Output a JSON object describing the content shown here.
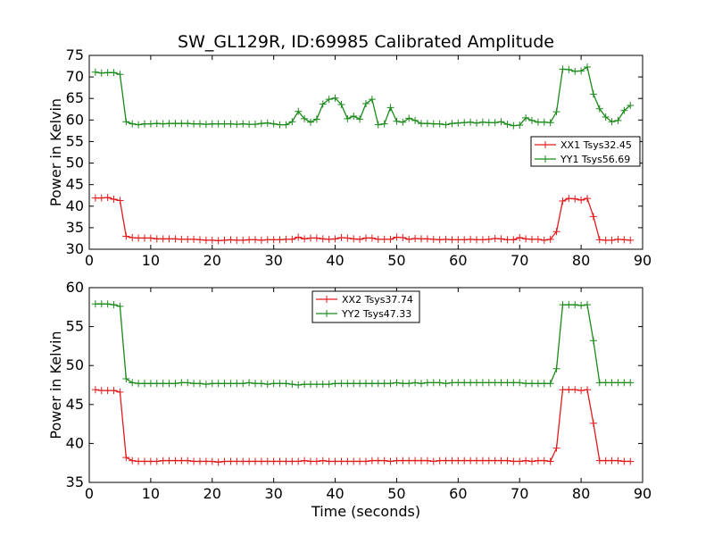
{
  "title": "SW_GL129R, ID:69985 Calibrated Amplitude",
  "xlabel": "Time (seconds)",
  "colors": {
    "red": "#e31a1c",
    "green": "#1a8a1a"
  },
  "chart_data": [
    {
      "type": "line",
      "title": "SW_GL129R, ID:69985 Calibrated Amplitude",
      "xlabel": "",
      "ylabel": "Power in Kelvin",
      "xlim": [
        0,
        90
      ],
      "ylim": [
        30,
        75
      ],
      "xticks": [
        0,
        10,
        20,
        30,
        40,
        50,
        60,
        70,
        80,
        90
      ],
      "yticks": [
        30,
        35,
        40,
        45,
        50,
        55,
        60,
        65,
        70,
        75
      ],
      "legend_position": "right",
      "series": [
        {
          "name": "XX1 Tsys32.45",
          "color": "#e31a1c",
          "x": [
            1,
            2,
            3,
            4,
            5,
            6,
            7,
            8,
            9,
            10,
            11,
            12,
            13,
            14,
            15,
            16,
            17,
            18,
            19,
            20,
            21,
            22,
            23,
            24,
            25,
            26,
            27,
            28,
            29,
            30,
            31,
            32,
            33,
            34,
            35,
            36,
            37,
            38,
            39,
            40,
            41,
            42,
            43,
            44,
            45,
            46,
            47,
            48,
            49,
            50,
            51,
            52,
            53,
            54,
            55,
            56,
            57,
            58,
            59,
            60,
            61,
            62,
            63,
            64,
            65,
            66,
            67,
            68,
            69,
            70,
            71,
            72,
            73,
            74,
            75,
            76,
            77,
            78,
            79,
            80,
            81,
            82,
            83,
            84,
            85,
            86,
            87,
            88
          ],
          "y": [
            41.9,
            41.9,
            42.0,
            41.6,
            41.3,
            33.0,
            32.7,
            32.6,
            32.6,
            32.6,
            32.4,
            32.4,
            32.4,
            32.4,
            32.3,
            32.3,
            32.3,
            32.2,
            32.1,
            32.1,
            32.0,
            32.1,
            32.2,
            32.1,
            32.1,
            32.2,
            32.2,
            32.1,
            32.2,
            32.2,
            32.2,
            32.3,
            32.3,
            32.8,
            32.4,
            32.6,
            32.6,
            32.4,
            32.3,
            32.4,
            32.7,
            32.6,
            32.4,
            32.3,
            32.6,
            32.6,
            32.3,
            32.3,
            32.3,
            32.8,
            32.7,
            32.3,
            32.5,
            32.4,
            32.4,
            32.3,
            32.2,
            32.3,
            32.2,
            32.2,
            32.2,
            32.3,
            32.2,
            32.2,
            32.3,
            32.5,
            32.4,
            32.2,
            32.2,
            32.7,
            32.4,
            32.3,
            32.3,
            32.1,
            32.3,
            34.1,
            41.2,
            41.8,
            41.7,
            41.4,
            41.8,
            37.6,
            32.2,
            32.1,
            32.1,
            32.3,
            32.2,
            32.1
          ]
        },
        {
          "name": "YY1 Tsys56.69",
          "color": "#1a8a1a",
          "x": [
            1,
            2,
            3,
            4,
            5,
            6,
            7,
            8,
            9,
            10,
            11,
            12,
            13,
            14,
            15,
            16,
            17,
            18,
            19,
            20,
            21,
            22,
            23,
            24,
            25,
            26,
            27,
            28,
            29,
            30,
            31,
            32,
            33,
            34,
            35,
            36,
            37,
            38,
            39,
            40,
            41,
            42,
            43,
            44,
            45,
            46,
            47,
            48,
            49,
            50,
            51,
            52,
            53,
            54,
            55,
            56,
            57,
            58,
            59,
            60,
            61,
            62,
            63,
            64,
            65,
            66,
            67,
            68,
            69,
            70,
            71,
            72,
            73,
            74,
            75,
            76,
            77,
            78,
            79,
            80,
            81,
            82,
            83,
            84,
            85,
            86,
            87,
            88
          ],
          "y": [
            71.1,
            70.9,
            71.0,
            71.0,
            70.6,
            59.6,
            59.1,
            58.9,
            59.1,
            59.1,
            59.2,
            59.1,
            59.2,
            59.2,
            59.2,
            59.2,
            59.1,
            59.1,
            59.0,
            59.1,
            59.1,
            59.1,
            59.1,
            59.0,
            59.1,
            59.0,
            59.0,
            59.2,
            59.3,
            59.1,
            58.9,
            58.9,
            59.6,
            62.0,
            60.3,
            59.5,
            60.2,
            63.7,
            64.8,
            65.1,
            63.6,
            60.3,
            60.9,
            60.2,
            63.8,
            64.8,
            58.9,
            59.1,
            62.9,
            59.7,
            59.5,
            60.4,
            59.9,
            59.2,
            59.2,
            59.1,
            59.1,
            58.9,
            59.2,
            59.3,
            59.4,
            59.5,
            59.3,
            59.5,
            59.4,
            59.4,
            59.6,
            59.0,
            58.7,
            58.8,
            60.5,
            59.9,
            59.5,
            59.5,
            59.4,
            61.9,
            71.8,
            71.7,
            71.3,
            71.4,
            72.3,
            66.0,
            62.6,
            60.7,
            59.6,
            59.9,
            62.2,
            63.4
          ]
        }
      ]
    },
    {
      "type": "line",
      "title": "",
      "xlabel": "Time (seconds)",
      "ylabel": "Power in Kelvin",
      "xlim": [
        0,
        90
      ],
      "ylim": [
        35,
        60
      ],
      "xticks": [
        0,
        10,
        20,
        30,
        40,
        50,
        60,
        70,
        80,
        90
      ],
      "yticks": [
        35,
        40,
        45,
        50,
        55,
        60
      ],
      "legend_position": "top-center",
      "series": [
        {
          "name": "XX2 Tsys37.74",
          "color": "#e31a1c",
          "x": [
            1,
            2,
            3,
            4,
            5,
            6,
            7,
            8,
            9,
            10,
            11,
            12,
            13,
            14,
            15,
            16,
            17,
            18,
            19,
            20,
            21,
            22,
            23,
            24,
            25,
            26,
            27,
            28,
            29,
            30,
            31,
            32,
            33,
            34,
            35,
            36,
            37,
            38,
            39,
            40,
            41,
            42,
            43,
            44,
            45,
            46,
            47,
            48,
            49,
            50,
            51,
            52,
            53,
            54,
            55,
            56,
            57,
            58,
            59,
            60,
            61,
            62,
            63,
            64,
            65,
            66,
            67,
            68,
            69,
            70,
            71,
            72,
            73,
            74,
            75,
            76,
            77,
            78,
            79,
            80,
            81,
            82,
            83,
            84,
            85,
            86,
            87,
            88
          ],
          "y": [
            46.9,
            46.8,
            46.8,
            46.8,
            46.6,
            38.2,
            37.8,
            37.7,
            37.7,
            37.7,
            37.7,
            37.8,
            37.8,
            37.8,
            37.8,
            37.8,
            37.7,
            37.7,
            37.7,
            37.7,
            37.6,
            37.7,
            37.7,
            37.7,
            37.7,
            37.7,
            37.7,
            37.7,
            37.7,
            37.7,
            37.7,
            37.7,
            37.7,
            37.7,
            37.8,
            37.7,
            37.7,
            37.8,
            37.7,
            37.7,
            37.7,
            37.7,
            37.7,
            37.7,
            37.7,
            37.8,
            37.8,
            37.8,
            37.7,
            37.8,
            37.8,
            37.8,
            37.8,
            37.8,
            37.8,
            37.7,
            37.8,
            37.8,
            37.8,
            37.8,
            37.8,
            37.8,
            37.8,
            37.8,
            37.8,
            37.8,
            37.8,
            37.8,
            37.7,
            37.7,
            37.8,
            37.7,
            37.8,
            37.8,
            37.7,
            39.4,
            46.9,
            46.9,
            46.9,
            46.8,
            46.9,
            42.6,
            37.8,
            37.8,
            37.8,
            37.8,
            37.7,
            37.7
          ]
        },
        {
          "name": "YY2 Tsys47.33",
          "color": "#1a8a1a",
          "x": [
            1,
            2,
            3,
            4,
            5,
            6,
            7,
            8,
            9,
            10,
            11,
            12,
            13,
            14,
            15,
            16,
            17,
            18,
            19,
            20,
            21,
            22,
            23,
            24,
            25,
            26,
            27,
            28,
            29,
            30,
            31,
            32,
            33,
            34,
            35,
            36,
            37,
            38,
            39,
            40,
            41,
            42,
            43,
            44,
            45,
            46,
            47,
            48,
            49,
            50,
            51,
            52,
            53,
            54,
            55,
            56,
            57,
            58,
            59,
            60,
            61,
            62,
            63,
            64,
            65,
            66,
            67,
            68,
            69,
            70,
            71,
            72,
            73,
            74,
            75,
            76,
            77,
            78,
            79,
            80,
            81,
            82,
            83,
            84,
            85,
            86,
            87,
            88
          ],
          "y": [
            57.9,
            57.9,
            57.9,
            57.8,
            57.6,
            48.3,
            47.8,
            47.7,
            47.7,
            47.7,
            47.7,
            47.7,
            47.7,
            47.7,
            47.8,
            47.8,
            47.7,
            47.7,
            47.6,
            47.7,
            47.7,
            47.7,
            47.7,
            47.7,
            47.7,
            47.8,
            47.7,
            47.7,
            47.6,
            47.7,
            47.7,
            47.7,
            47.6,
            47.5,
            47.6,
            47.6,
            47.6,
            47.6,
            47.6,
            47.7,
            47.7,
            47.7,
            47.7,
            47.7,
            47.7,
            47.7,
            47.7,
            47.7,
            47.7,
            47.8,
            47.7,
            47.7,
            47.8,
            47.7,
            47.8,
            47.8,
            47.8,
            47.7,
            47.8,
            47.8,
            47.8,
            47.8,
            47.8,
            47.8,
            47.8,
            47.8,
            47.8,
            47.8,
            47.8,
            47.8,
            47.7,
            47.7,
            47.7,
            47.7,
            47.7,
            49.6,
            57.8,
            57.8,
            57.8,
            57.7,
            57.8,
            53.2,
            47.8,
            47.8,
            47.8,
            47.8,
            47.8,
            47.8
          ]
        }
      ]
    }
  ]
}
